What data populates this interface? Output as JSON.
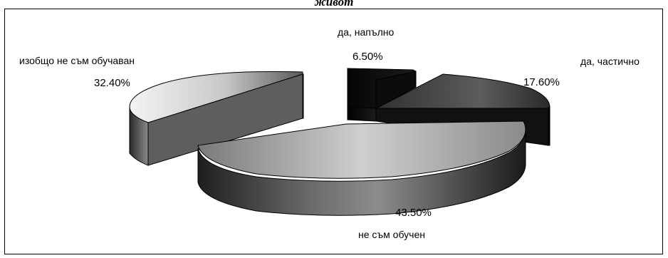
{
  "chart_data": {
    "type": "pie",
    "title": "живот",
    "categories": [
      "да, напълно",
      "да, частично",
      "не съм обучен",
      "изобщо не съм обучаван"
    ],
    "values": [
      6.5,
      17.6,
      43.5,
      32.4
    ],
    "value_labels": [
      "6.50%",
      "17.60%",
      "43.50%",
      "32.40%"
    ],
    "style": "3d-exploded-pie",
    "legend": "none"
  }
}
